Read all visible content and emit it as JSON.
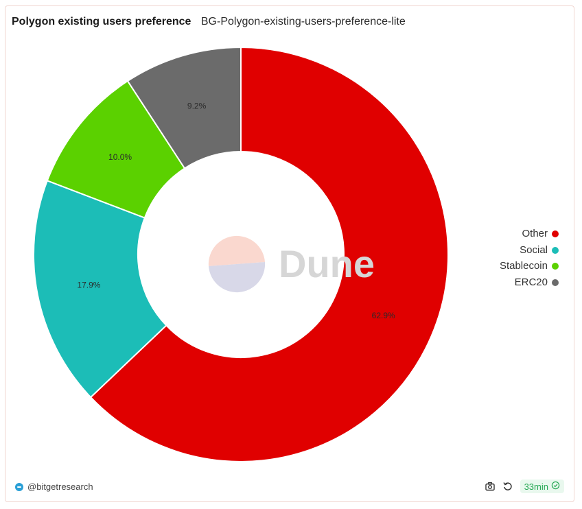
{
  "header": {
    "title": "Polygon existing users preference",
    "subtitle": "BG-Polygon-existing-users-preference-lite"
  },
  "watermark": "Dune",
  "chart_data": {
    "type": "pie",
    "donut": true,
    "slices": [
      {
        "label": "Other",
        "value": 62.9,
        "display": "62.9%",
        "color": "#e00000"
      },
      {
        "label": "Social",
        "value": 17.9,
        "display": "17.9%",
        "color": "#1cbdb7"
      },
      {
        "label": "Stablecoin",
        "value": 10.0,
        "display": "10.0%",
        "color": "#5bd100"
      },
      {
        "label": "ERC20",
        "value": 9.2,
        "display": "9.2%",
        "color": "#6b6b6b"
      }
    ],
    "legend_position": "right",
    "direction": "clockwise from top"
  },
  "legend": [
    {
      "label": "Other",
      "color": "#e00000"
    },
    {
      "label": "Social",
      "color": "#1cbdb7"
    },
    {
      "label": "Stablecoin",
      "color": "#5bd100"
    },
    {
      "label": "ERC20",
      "color": "#6b6b6b"
    }
  ],
  "footer": {
    "author": "@bitgetresearch",
    "refresh_label": "33min",
    "icons": [
      "camera-icon",
      "refresh-icon",
      "check-circle-icon"
    ]
  }
}
